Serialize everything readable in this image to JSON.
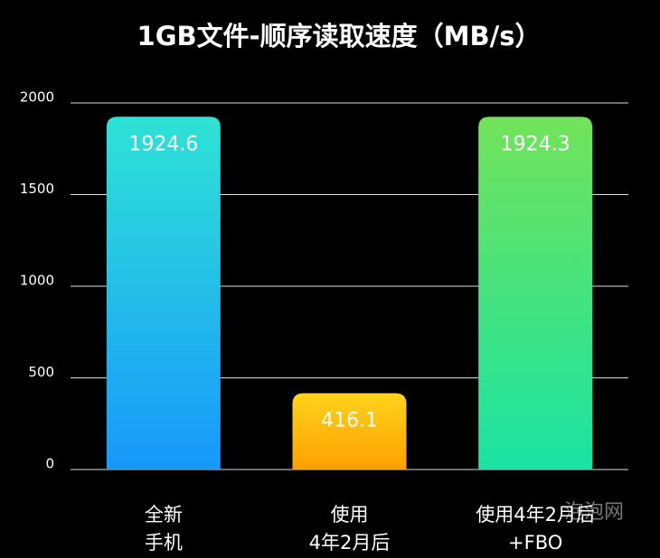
{
  "chart_data": {
    "type": "bar",
    "title": "1GB文件-顺序读取速度（MB/s）",
    "categories": [
      [
        "全新",
        "手机"
      ],
      [
        "使用",
        "4年2月后"
      ],
      [
        "使用4年2月后",
        "+FBO"
      ]
    ],
    "values": [
      1924.6,
      416.1,
      1924.3
    ],
    "bar_gradients": [
      [
        "#2ee3d5",
        "#1898fb"
      ],
      [
        "#ffd31c",
        "#ffa000"
      ],
      [
        "#72e35a",
        "#19e3a4"
      ]
    ],
    "ylim": [
      0,
      2000
    ],
    "yticks": [
      0,
      500,
      1000,
      1500,
      2000
    ],
    "grid": true,
    "watermark": "泡泡网"
  }
}
